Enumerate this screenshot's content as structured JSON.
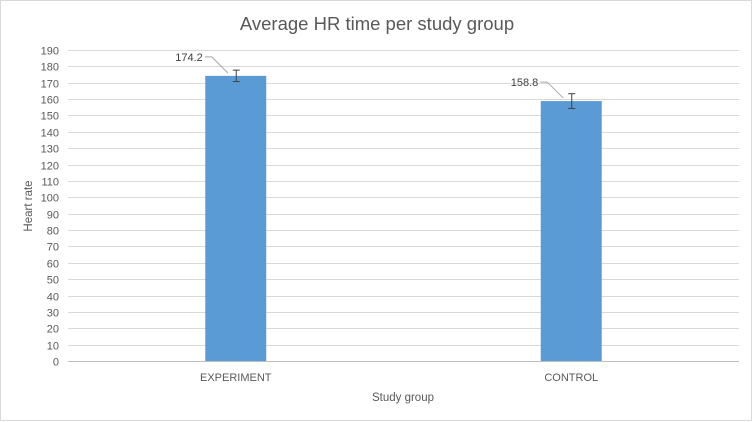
{
  "chart_data": {
    "type": "bar",
    "title": "Average HR time per study group",
    "xlabel": "Study group",
    "ylabel": "Heart rate",
    "categories": [
      "EXPERIMENT",
      "CONTROL"
    ],
    "values": [
      174.2,
      158.8
    ],
    "data_labels": [
      "174.2",
      "158.8"
    ],
    "error_bars": [
      3.5,
      4.5
    ],
    "ylim": [
      0,
      190
    ],
    "y_ticks": [
      0,
      10,
      20,
      30,
      40,
      50,
      60,
      70,
      80,
      90,
      100,
      110,
      120,
      130,
      140,
      150,
      160,
      170,
      180,
      190
    ],
    "grid": true,
    "legend": "none",
    "colors": {
      "bar": "#5b9bd5",
      "grid": "#d9d9d9",
      "text": "#595959",
      "error_bar": "#404040"
    }
  }
}
